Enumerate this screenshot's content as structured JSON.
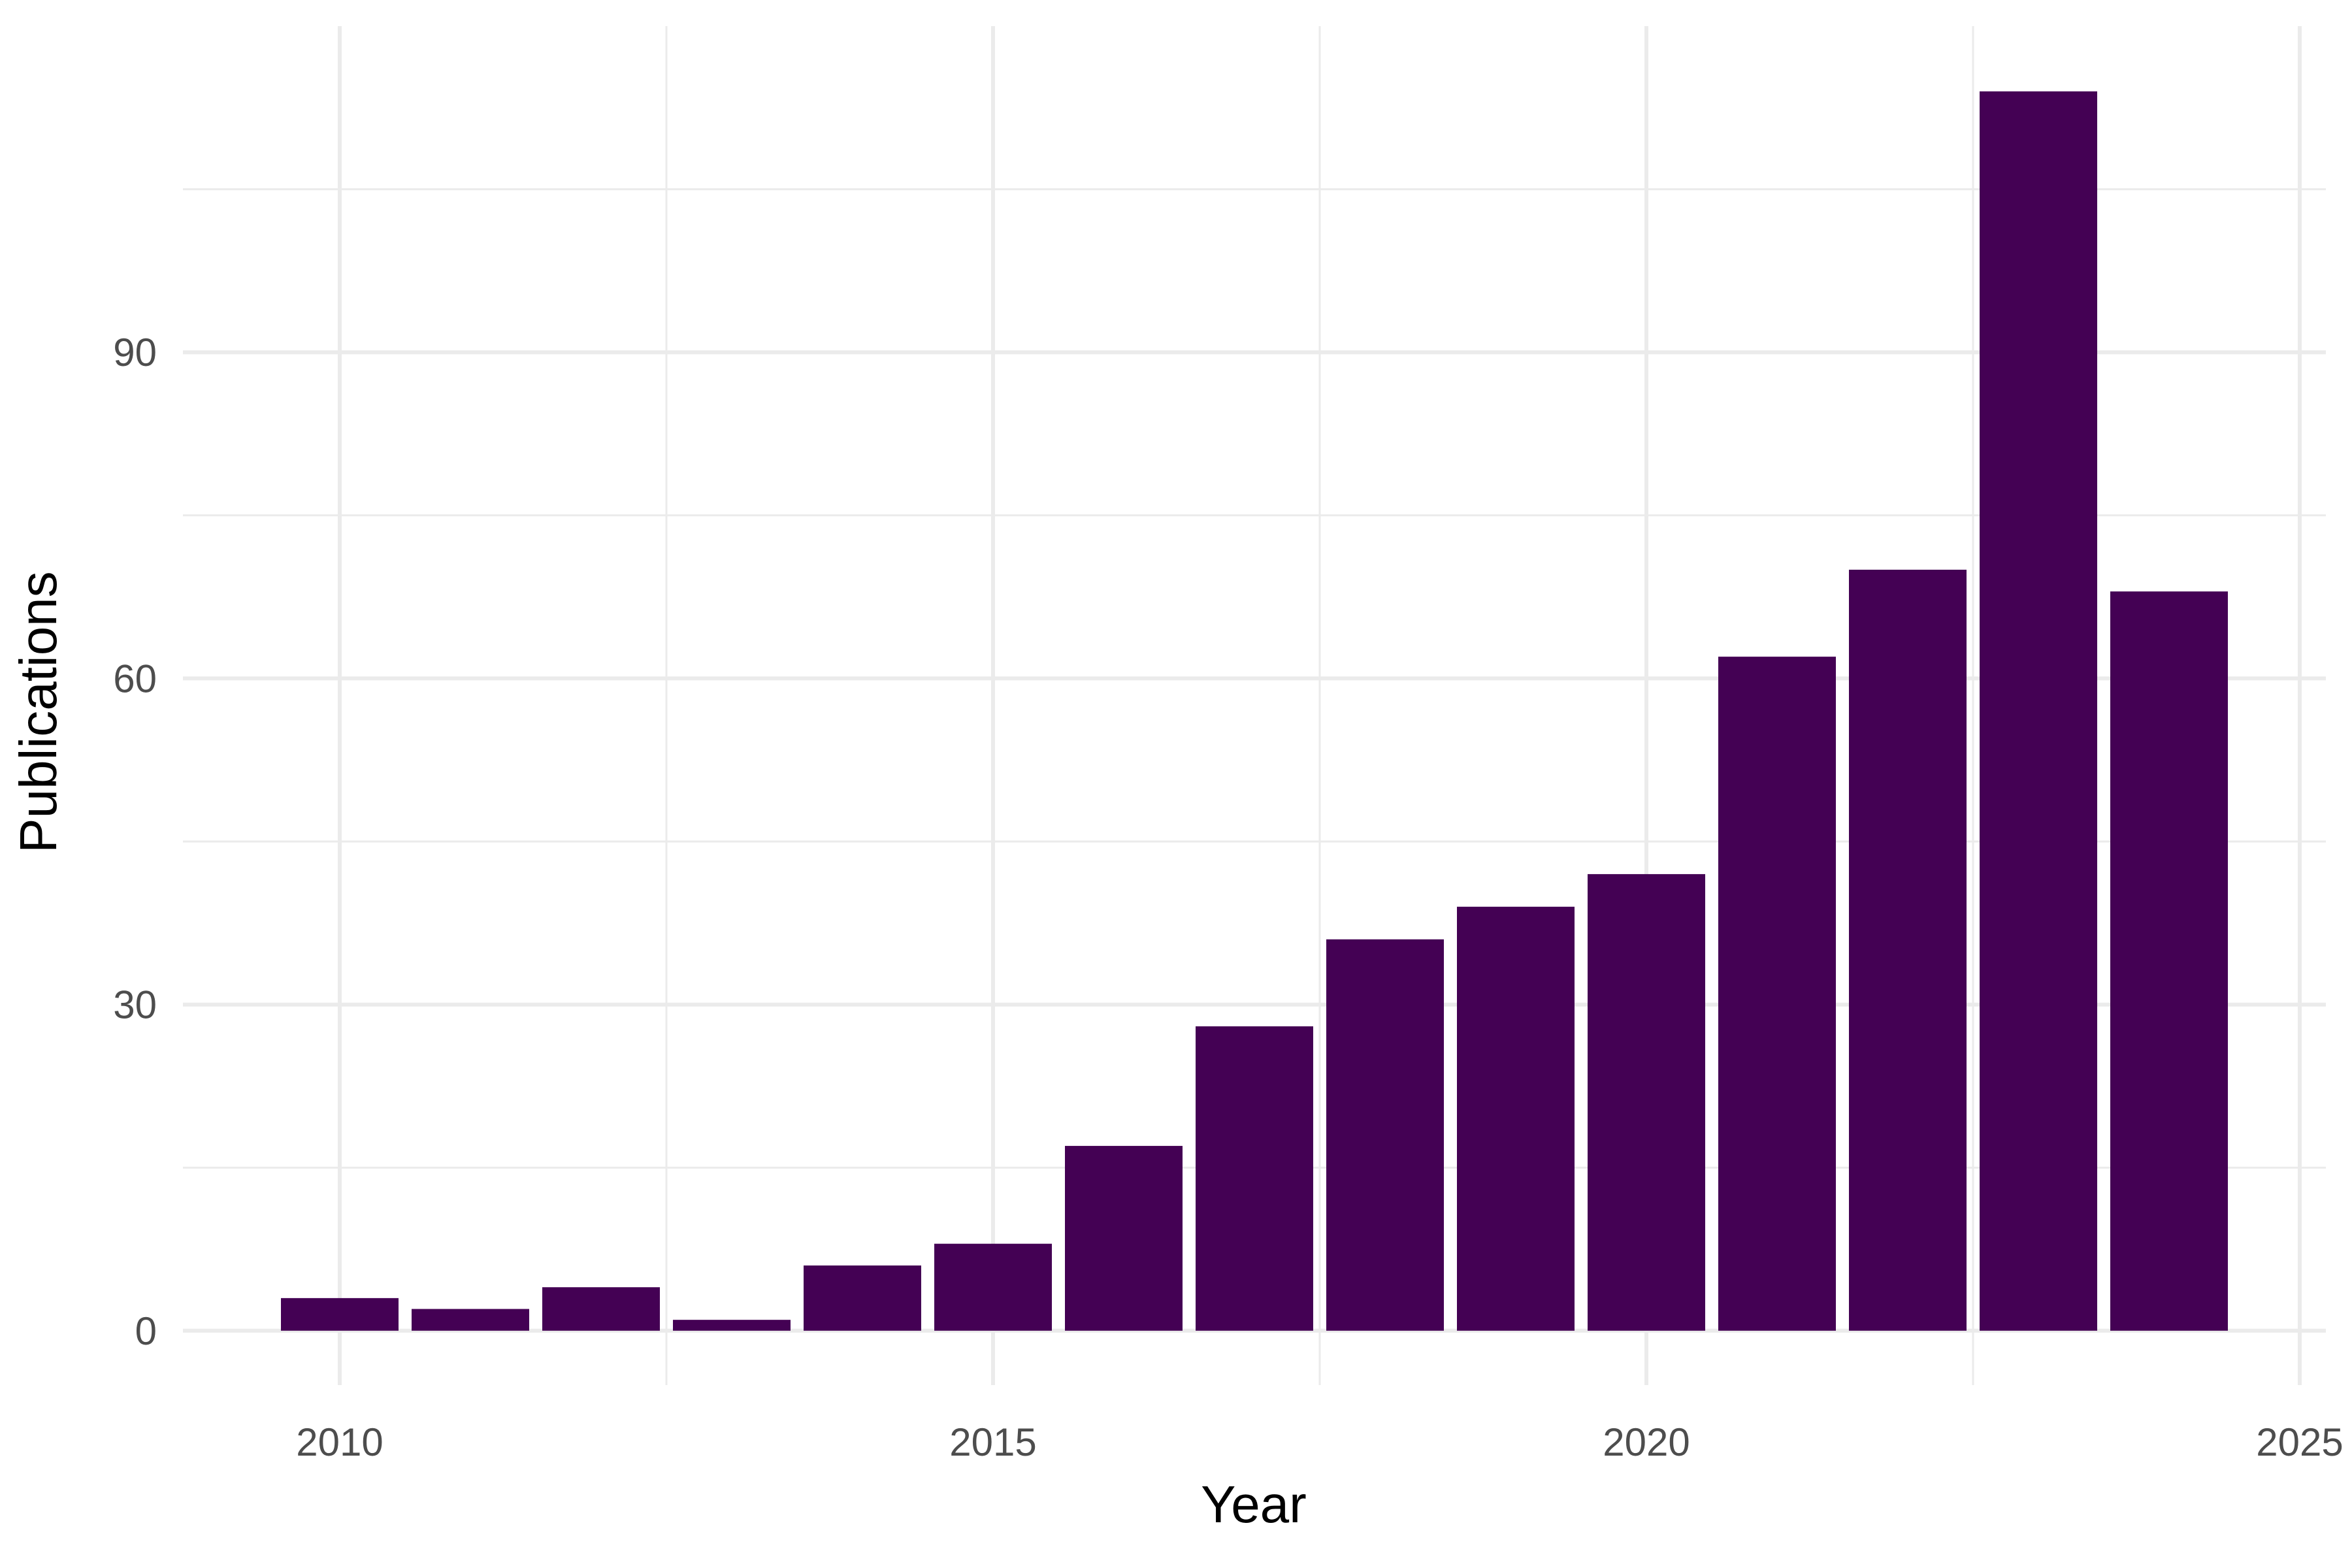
{
  "chart_data": {
    "type": "bar",
    "title": "",
    "xlabel": "Year",
    "ylabel": "Publications",
    "x": [
      2010,
      2011,
      2012,
      2013,
      2014,
      2015,
      2016,
      2017,
      2018,
      2019,
      2020,
      2021,
      2022,
      2023,
      2024
    ],
    "values": [
      3,
      2,
      4,
      1,
      6,
      8,
      17,
      28,
      36,
      39,
      42,
      62,
      70,
      114,
      68
    ],
    "xlim": [
      2008.8,
      2025.2
    ],
    "ylim": [
      -5,
      120
    ],
    "x_ticks": [
      2010,
      2015,
      2020,
      2025
    ],
    "x_tick_labels": [
      "2010",
      "2015",
      "2020",
      "2025"
    ],
    "y_ticks": [
      0,
      30,
      60,
      90
    ],
    "y_tick_labels": [
      "0",
      "30",
      "60",
      "90"
    ],
    "y_minor_ticks": [
      15,
      45,
      75,
      105
    ],
    "x_minor_ticks": [
      2012.5,
      2017.5,
      2022.5
    ],
    "bar_color": "#440154",
    "grid": true,
    "legend": "none"
  }
}
